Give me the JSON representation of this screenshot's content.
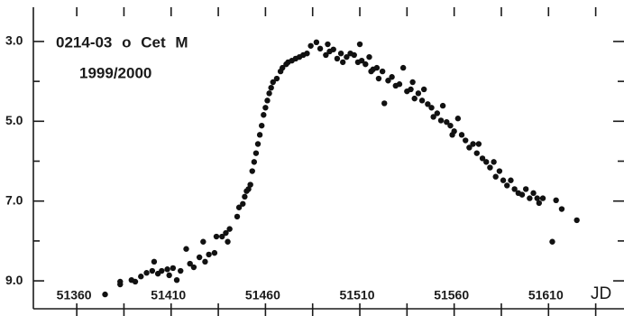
{
  "chart_data": {
    "type": "scatter",
    "title": "0214-03 o Cet M",
    "subtitle": "1999/2000",
    "x_label": "JD",
    "color": "#111111",
    "xlim": [
      51337,
      51650
    ],
    "ylim": [
      9.7,
      2.3
    ],
    "xticks": [
      51360,
      51410,
      51460,
      51510,
      51560,
      51610
    ],
    "xminor_ticks": [
      51385,
      51435,
      51485,
      51535,
      51585,
      51635
    ],
    "yticks": [
      {
        "value": 3,
        "label": "3.0"
      },
      {
        "value": 5,
        "label": "5.0"
      },
      {
        "value": 7,
        "label": "7.0"
      },
      {
        "value": 9,
        "label": "9.0"
      }
    ],
    "yminor_ticks": [
      4,
      6,
      8
    ],
    "x": [
      51375,
      51383,
      51383,
      51389,
      51391,
      51394,
      51397,
      51400,
      51401,
      51403,
      51405,
      51408,
      51409,
      51411,
      51413,
      51415,
      51418,
      51420,
      51422,
      51425,
      51427,
      51428,
      51430,
      51433,
      51434,
      51437,
      51439,
      51440,
      51441,
      51445,
      51446,
      51448,
      51449,
      51450,
      51451,
      51452,
      51453,
      51454,
      51455,
      51456,
      51457,
      51458,
      51459,
      51460,
      51461,
      51462,
      51463,
      51464,
      51466,
      51468,
      51469,
      51471,
      51472,
      51474,
      51476,
      51478,
      51480,
      51482,
      51484,
      51487,
      51489,
      51492,
      51493,
      51494,
      51496,
      51498,
      51500,
      51501,
      51503,
      51505,
      51507,
      51509,
      51510,
      51511,
      51513,
      51515,
      51516,
      51517,
      51519,
      51520,
      51522,
      51523,
      51525,
      51527,
      51529,
      51531,
      51533,
      51535,
      51537,
      51538,
      51539,
      51541,
      51543,
      51544,
      51546,
      51548,
      51549,
      51551,
      51553,
      51554,
      51556,
      51558,
      51559,
      51560,
      51562,
      51564,
      51566,
      51568,
      51570,
      51572,
      51573,
      51575,
      51577,
      51579,
      51581,
      51582,
      51584,
      51586,
      51588,
      51590,
      51592,
      51594,
      51596,
      51598,
      51600,
      51602,
      51604,
      51605,
      51607,
      51612,
      51614,
      51617,
      51625
    ],
    "values": [
      9.34,
      9.02,
      9.09,
      8.98,
      9.02,
      8.89,
      8.8,
      8.75,
      8.52,
      8.82,
      8.75,
      8.71,
      8.86,
      8.68,
      8.98,
      8.75,
      8.2,
      8.57,
      8.66,
      8.41,
      8.02,
      8.52,
      8.34,
      8.3,
      7.89,
      7.89,
      7.8,
      8.02,
      7.7,
      7.39,
      7.16,
      7.07,
      6.89,
      6.75,
      6.7,
      6.59,
      6.25,
      6.02,
      5.8,
      5.57,
      5.34,
      5.11,
      4.84,
      4.66,
      4.48,
      4.3,
      4.16,
      4.02,
      3.93,
      3.75,
      3.66,
      3.57,
      3.52,
      3.48,
      3.43,
      3.39,
      3.34,
      3.3,
      3.11,
      3.02,
      3.18,
      3.34,
      3.07,
      3.25,
      3.2,
      3.43,
      3.3,
      3.52,
      3.39,
      3.3,
      3.34,
      3.52,
      3.07,
      3.48,
      3.57,
      3.39,
      3.75,
      3.7,
      3.66,
      3.93,
      3.75,
      4.55,
      3.98,
      3.89,
      4.11,
      4.07,
      3.66,
      4.25,
      4.2,
      4.02,
      4.43,
      4.3,
      4.48,
      4.2,
      4.57,
      4.66,
      4.89,
      4.8,
      4.98,
      4.61,
      5.02,
      5.11,
      5.34,
      5.25,
      4.93,
      5.34,
      5.48,
      5.66,
      5.57,
      5.8,
      5.57,
      5.93,
      6.02,
      6.16,
      6.02,
      6.39,
      6.25,
      6.48,
      6.61,
      6.48,
      6.7,
      6.8,
      6.84,
      6.7,
      6.93,
      6.8,
      6.93,
      7.05,
      6.93,
      8.02,
      6.98,
      7.2,
      7.48
    ]
  }
}
